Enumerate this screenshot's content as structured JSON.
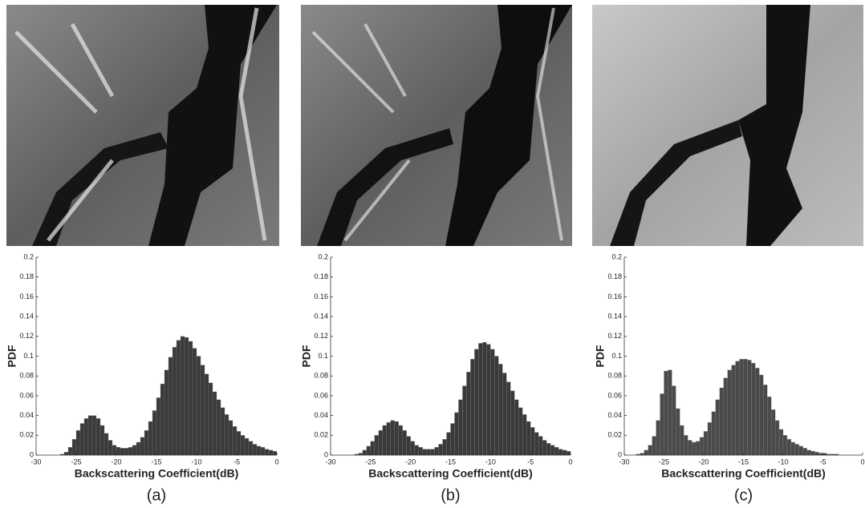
{
  "chart_data": [
    {
      "type": "histogram",
      "label": "(a)",
      "x_label": "Backscattering Coefficient(dB)",
      "y_label": "PDF",
      "xlim": [
        -30,
        0
      ],
      "ylim": [
        0,
        0.2
      ],
      "xticks": [
        -30,
        -25,
        -20,
        -15,
        -10,
        -5,
        0
      ],
      "yticks": [
        0,
        0.02,
        0.04,
        0.06,
        0.08,
        0.1,
        0.12,
        0.14,
        0.16,
        0.18,
        0.2
      ],
      "color": "#3a3a3a",
      "bins": [
        -30,
        -29.5,
        -29,
        -28.5,
        -28,
        -27.5,
        -27,
        -26.5,
        -26,
        -25.5,
        -25,
        -24.5,
        -24,
        -23.5,
        -23,
        -22.5,
        -22,
        -21.5,
        -21,
        -20.5,
        -20,
        -19.5,
        -19,
        -18.5,
        -18,
        -17.5,
        -17,
        -16.5,
        -16,
        -15.5,
        -15,
        -14.5,
        -14,
        -13.5,
        -13,
        -12.5,
        -12,
        -11.5,
        -11,
        -10.5,
        -10,
        -9.5,
        -9,
        -8.5,
        -8,
        -7.5,
        -7,
        -6.5,
        -6,
        -5.5,
        -5,
        -4.5,
        -4,
        -3.5,
        -3,
        -2.5,
        -2,
        -1.5,
        -1,
        -0.5,
        0
      ],
      "values": [
        0,
        0,
        0,
        0,
        0,
        0,
        0.001,
        0.003,
        0.008,
        0.016,
        0.025,
        0.032,
        0.037,
        0.04,
        0.04,
        0.037,
        0.03,
        0.022,
        0.015,
        0.01,
        0.008,
        0.007,
        0.007,
        0.008,
        0.01,
        0.013,
        0.018,
        0.025,
        0.034,
        0.045,
        0.058,
        0.072,
        0.086,
        0.099,
        0.109,
        0.116,
        0.12,
        0.119,
        0.115,
        0.108,
        0.1,
        0.091,
        0.082,
        0.073,
        0.064,
        0.056,
        0.048,
        0.041,
        0.035,
        0.029,
        0.024,
        0.02,
        0.017,
        0.014,
        0.011,
        0.009,
        0.008,
        0.006,
        0.005,
        0.004
      ]
    },
    {
      "type": "histogram",
      "label": "(b)",
      "x_label": "Backscattering Coefficient(dB)",
      "y_label": "PDF",
      "xlim": [
        -30,
        0
      ],
      "ylim": [
        0,
        0.2
      ],
      "xticks": [
        -30,
        -25,
        -20,
        -15,
        -10,
        -5,
        0
      ],
      "yticks": [
        0,
        0.02,
        0.04,
        0.06,
        0.08,
        0.1,
        0.12,
        0.14,
        0.16,
        0.18,
        0.2
      ],
      "color": "#3a3a3a",
      "bins": [
        -30,
        -29.5,
        -29,
        -28.5,
        -28,
        -27.5,
        -27,
        -26.5,
        -26,
        -25.5,
        -25,
        -24.5,
        -24,
        -23.5,
        -23,
        -22.5,
        -22,
        -21.5,
        -21,
        -20.5,
        -20,
        -19.5,
        -19,
        -18.5,
        -18,
        -17.5,
        -17,
        -16.5,
        -16,
        -15.5,
        -15,
        -14.5,
        -14,
        -13.5,
        -13,
        -12.5,
        -12,
        -11.5,
        -11,
        -10.5,
        -10,
        -9.5,
        -9,
        -8.5,
        -8,
        -7.5,
        -7,
        -6.5,
        -6,
        -5.5,
        -5,
        -4.5,
        -4,
        -3.5,
        -3,
        -2.5,
        -2,
        -1.5,
        -1,
        -0.5,
        0
      ],
      "values": [
        0,
        0,
        0,
        0,
        0,
        0,
        0.001,
        0.002,
        0.005,
        0.009,
        0.014,
        0.02,
        0.025,
        0.03,
        0.033,
        0.035,
        0.034,
        0.03,
        0.025,
        0.019,
        0.014,
        0.01,
        0.008,
        0.006,
        0.006,
        0.006,
        0.008,
        0.011,
        0.016,
        0.023,
        0.032,
        0.043,
        0.056,
        0.07,
        0.084,
        0.097,
        0.107,
        0.113,
        0.114,
        0.112,
        0.107,
        0.1,
        0.092,
        0.083,
        0.074,
        0.065,
        0.056,
        0.048,
        0.041,
        0.034,
        0.028,
        0.023,
        0.019,
        0.015,
        0.012,
        0.01,
        0.008,
        0.006,
        0.005,
        0.004
      ]
    },
    {
      "type": "histogram",
      "label": "(c)",
      "x_label": "Backscattering Coefficient(dB)",
      "y_label": "PDF",
      "xlim": [
        -30,
        0
      ],
      "ylim": [
        0,
        0.2
      ],
      "xticks": [
        -30,
        -25,
        -20,
        -15,
        -10,
        -5,
        0
      ],
      "yticks": [
        0,
        0.02,
        0.04,
        0.06,
        0.08,
        0.1,
        0.12,
        0.14,
        0.16,
        0.18,
        0.2
      ],
      "color": "#4a4a4a",
      "bins": [
        -30,
        -29.5,
        -29,
        -28.5,
        -28,
        -27.5,
        -27,
        -26.5,
        -26,
        -25.5,
        -25,
        -24.5,
        -24,
        -23.5,
        -23,
        -22.5,
        -22,
        -21.5,
        -21,
        -20.5,
        -20,
        -19.5,
        -19,
        -18.5,
        -18,
        -17.5,
        -17,
        -16.5,
        -16,
        -15.5,
        -15,
        -14.5,
        -14,
        -13.5,
        -13,
        -12.5,
        -12,
        -11.5,
        -11,
        -10.5,
        -10,
        -9.5,
        -9,
        -8.5,
        -8,
        -7.5,
        -7,
        -6.5,
        -6,
        -5.5,
        -5,
        -4.5,
        -4,
        -3.5,
        -3,
        -2.5,
        -2,
        -1.5,
        -1,
        -0.5,
        0
      ],
      "values": [
        0,
        0,
        0,
        0.001,
        0.002,
        0.005,
        0.01,
        0.019,
        0.035,
        0.062,
        0.085,
        0.086,
        0.07,
        0.047,
        0.03,
        0.02,
        0.015,
        0.013,
        0.014,
        0.018,
        0.024,
        0.033,
        0.044,
        0.056,
        0.068,
        0.078,
        0.086,
        0.091,
        0.095,
        0.097,
        0.097,
        0.096,
        0.093,
        0.088,
        0.081,
        0.071,
        0.059,
        0.046,
        0.035,
        0.026,
        0.02,
        0.016,
        0.013,
        0.011,
        0.009,
        0.007,
        0.005,
        0.004,
        0.003,
        0.002,
        0.002,
        0.001,
        0.001,
        0.001,
        0,
        0,
        0,
        0,
        0,
        0
      ]
    }
  ]
}
